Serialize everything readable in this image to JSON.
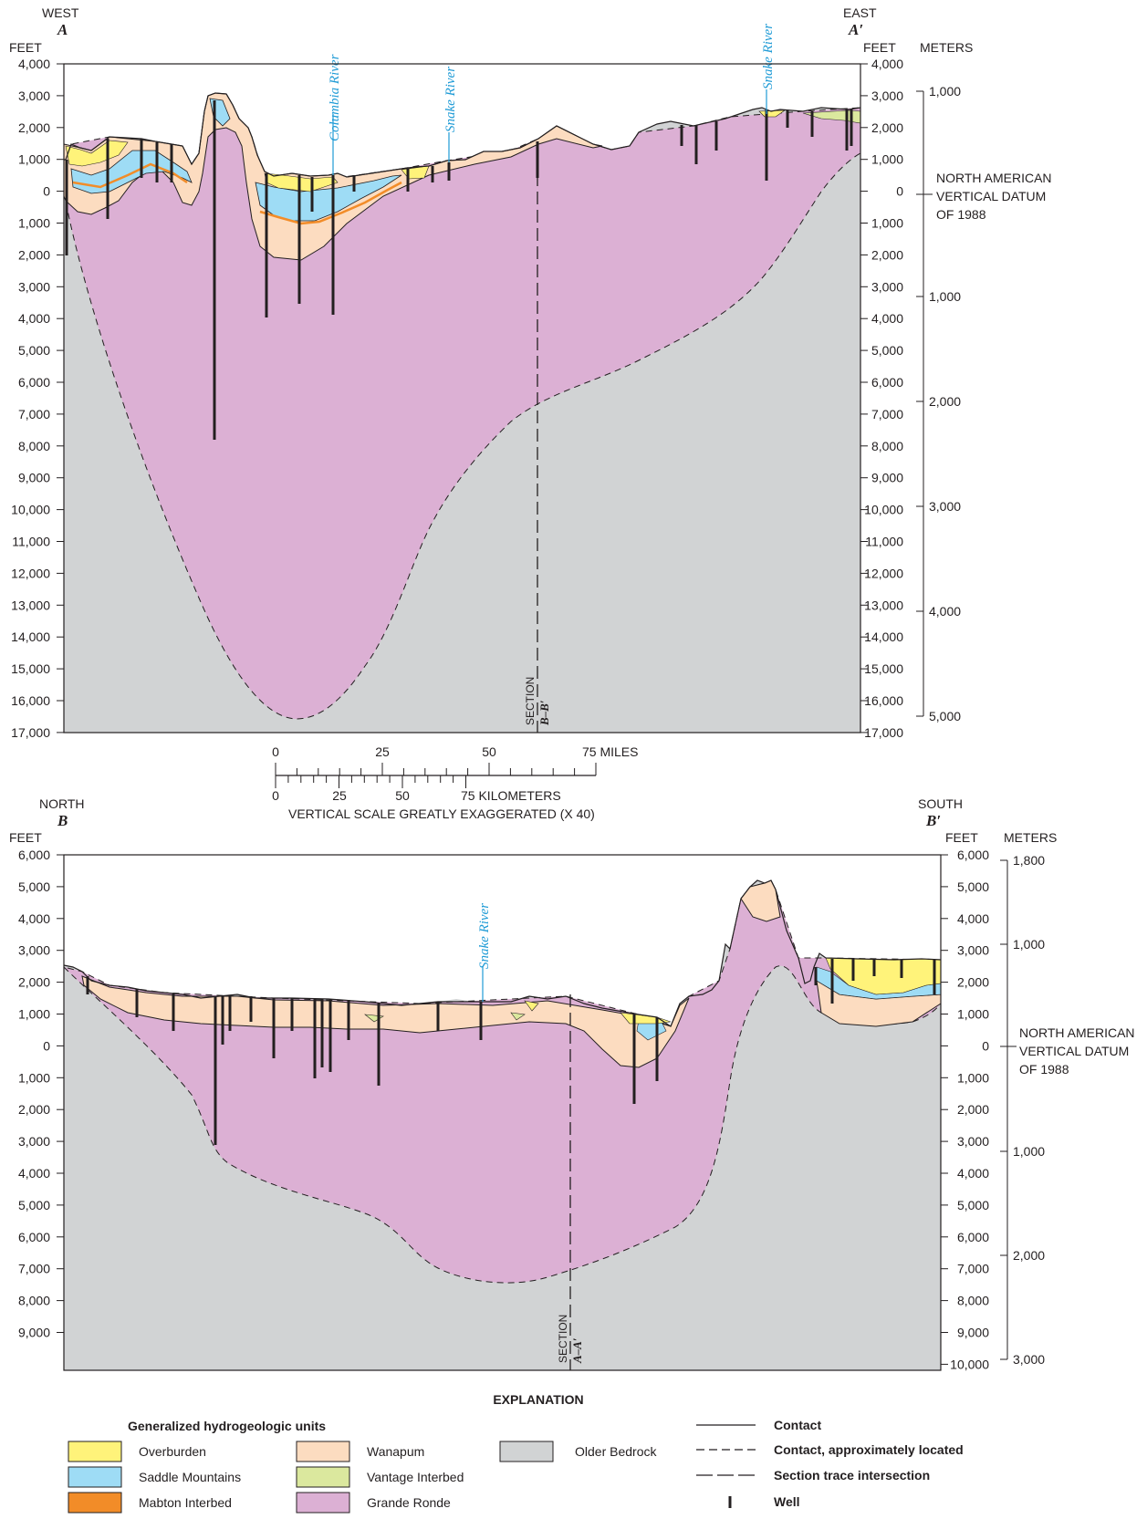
{
  "section_a": {
    "left_direction": "WEST",
    "left_letter": "A",
    "right_direction": "EAST",
    "right_letter": "A′",
    "feet_label_left": "FEET",
    "feet_label_right": "FEET",
    "meters_label": "METERS",
    "feet_ticks": [
      "4,000",
      "3,000",
      "2,000",
      "1,000",
      "0",
      "1,000",
      "2,000",
      "3,000",
      "4,000",
      "5,000",
      "6,000",
      "7,000",
      "8,000",
      "9,000",
      "10,000",
      "11,000",
      "12,000",
      "13,000",
      "14,000",
      "15,000",
      "16,000",
      "17,000"
    ],
    "meter_ticks": [
      "1,000",
      "1,000",
      "2,000",
      "3,000",
      "4,000",
      "5,000"
    ],
    "datum_lines": [
      "NORTH AMERICAN",
      "VERTICAL DATUM",
      "OF 1988"
    ],
    "rivers": [
      "Columbia River",
      "Snake River",
      "Snake River"
    ],
    "section_label": "SECTION",
    "section_letter": "B–B′"
  },
  "scale": {
    "miles_ticks": [
      "0",
      "25",
      "50"
    ],
    "miles_end": "75 MILES",
    "km_ticks": [
      "0",
      "25",
      "50"
    ],
    "km_end": "75 KILOMETERS",
    "note": "VERTICAL SCALE GREATLY EXAGGERATED (X 40)"
  },
  "section_b": {
    "left_direction": "NORTH",
    "left_letter": "B",
    "right_direction": "SOUTH",
    "right_letter": "B′",
    "feet_label_left": "FEET",
    "feet_label_right": "FEET",
    "meters_label": "METERS",
    "feet_ticks_left": [
      "6,000",
      "5,000",
      "4,000",
      "3,000",
      "2,000",
      "1,000",
      "0",
      "1,000",
      "2,000",
      "3,000",
      "4,000",
      "5,000",
      "6,000",
      "7,000",
      "8,000",
      "9,000"
    ],
    "feet_ticks_right": [
      "6,000",
      "5,000",
      "4,000",
      "3,000",
      "2,000",
      "1,000",
      "0",
      "1,000",
      "2,000",
      "3,000",
      "4,000",
      "5,000",
      "6,000",
      "7,000",
      "8,000",
      "9,000",
      "10,000"
    ],
    "meter_ticks": [
      "1,800",
      "1,000",
      "1,000",
      "2,000",
      "3,000"
    ],
    "datum_lines": [
      "NORTH AMERICAN",
      "VERTICAL DATUM",
      "OF 1988"
    ],
    "rivers": [
      "Snake River"
    ],
    "section_label": "SECTION",
    "section_letter": "A–A′"
  },
  "explanation": {
    "title": "EXPLANATION",
    "units_heading": "Generalized hydrogeologic units",
    "units": [
      {
        "label": "Overburden",
        "color": "#fff37a"
      },
      {
        "label": "Saddle Mountains",
        "color": "#9edcf5"
      },
      {
        "label": "Mabton Interbed",
        "color": "#f28c28"
      },
      {
        "label": "Wanapum",
        "color": "#fcdcc0"
      },
      {
        "label": "Vantage Interbed",
        "color": "#dbe89e"
      },
      {
        "label": "Grande Ronde",
        "color": "#dcb0d4"
      },
      {
        "label": "Older Bedrock",
        "color": "#d1d3d4"
      }
    ],
    "lines": [
      {
        "label": "Contact",
        "style": "solid"
      },
      {
        "label": "Contact, approximately located",
        "style": "dashed"
      },
      {
        "label": "Section trace intersection",
        "style": "long-dash"
      },
      {
        "label": "Well",
        "style": "well"
      }
    ]
  },
  "colors": {
    "river": "#1f9bd6",
    "bedrock": "#d1d3d4",
    "grande_ronde": "#dcb0d4",
    "wanapum": "#fcdcc0",
    "saddle": "#9edcf5",
    "overburden": "#fff37a",
    "mabton": "#f28c28",
    "vantage": "#dbe89e"
  }
}
